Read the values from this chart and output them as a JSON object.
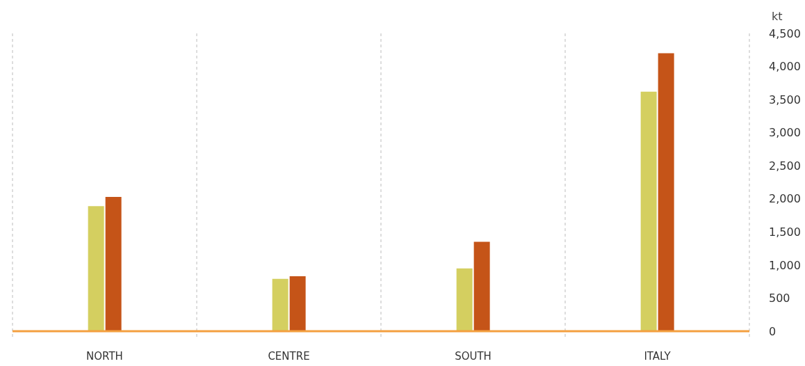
{
  "chart_data": {
    "type": "bar",
    "ylabel": "kt",
    "categories": [
      "NORTH",
      "CENTRE",
      "SOUTH",
      "ITALY"
    ],
    "series": [
      {
        "color": "#d4cf60",
        "values": [
          1890,
          790,
          950,
          3620
        ]
      },
      {
        "color": "#c55418",
        "values": [
          2030,
          830,
          1350,
          4200
        ]
      }
    ],
    "ylim": [
      0,
      4500
    ],
    "yticks": [
      0,
      {
        "value": 500,
        "label": "500"
      },
      {
        "value": 1000,
        "label": "1,000"
      },
      {
        "value": 1500,
        "label": "1,500"
      },
      {
        "value": 2000,
        "label": "2,000"
      },
      {
        "value": 2500,
        "label": "2,500"
      },
      {
        "value": 3000,
        "label": "3,000"
      },
      {
        "value": 3500,
        "label": "3,500"
      },
      {
        "value": 4000,
        "label": "4,000"
      },
      {
        "value": 4500,
        "label": "4,500"
      }
    ],
    "grid": "x",
    "legend": false
  }
}
